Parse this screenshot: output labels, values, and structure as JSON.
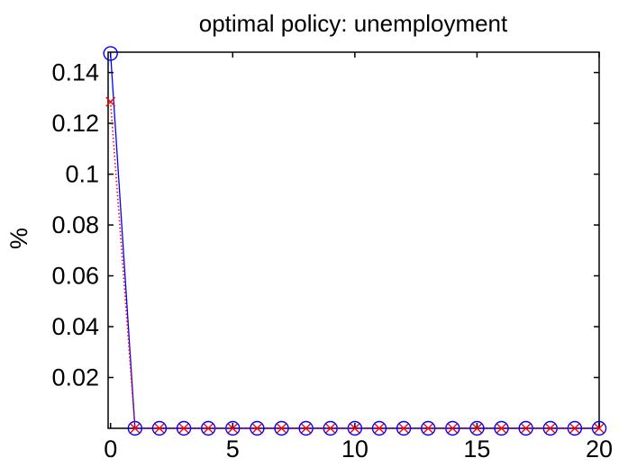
{
  "chart_data": {
    "type": "line",
    "title": "optimal policy: unemployment",
    "xlabel": "",
    "ylabel": "%",
    "xlim": [
      -0.1,
      20
    ],
    "ylim": [
      0,
      0.148
    ],
    "x_ticks": [
      0,
      5,
      10,
      15,
      20
    ],
    "y_ticks": [
      0.02,
      0.04,
      0.06,
      0.08,
      0.1,
      0.12,
      0.14
    ],
    "x_tick_labels": [
      "0",
      "5",
      "10",
      "15",
      "20"
    ],
    "y_tick_labels": [
      "0.02",
      "0.04",
      "0.06",
      "0.08",
      "0.1",
      "0.12",
      "0.14"
    ],
    "grid": false,
    "x": [
      0,
      1,
      2,
      3,
      4,
      5,
      6,
      7,
      8,
      9,
      10,
      11,
      12,
      13,
      14,
      15,
      16,
      17,
      18,
      19,
      20
    ],
    "series": [
      {
        "values": [
          0.1475,
          0,
          0,
          0,
          0,
          0,
          0,
          0,
          0,
          0,
          0,
          0,
          0,
          0,
          0,
          0,
          0,
          0,
          0,
          0,
          0
        ],
        "color": "#0000ff",
        "marker": "circle",
        "line_style": "solid"
      },
      {
        "values": [
          0.1285,
          0,
          0,
          0,
          0,
          0,
          0,
          0,
          0,
          0,
          0,
          0,
          0,
          0,
          0,
          0,
          0,
          0,
          0,
          0,
          0
        ],
        "color": "#ff0000",
        "marker": "x",
        "line_style": "dotted"
      }
    ]
  }
}
